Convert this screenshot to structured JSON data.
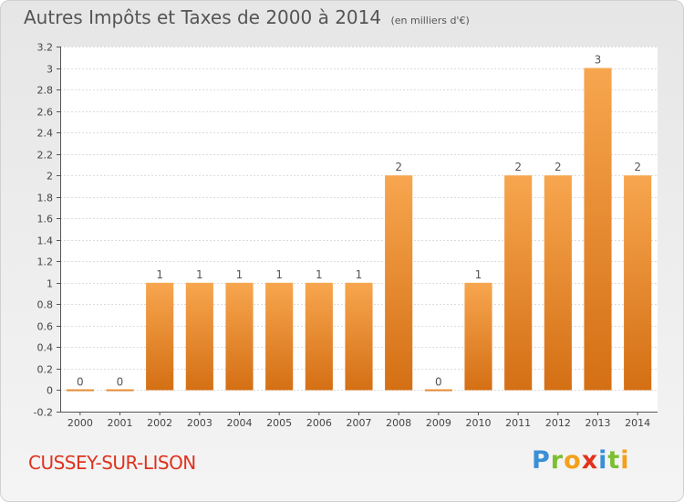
{
  "header": {
    "title": "Autres Impôts et Taxes de 2000 à 2014",
    "unit": "(en milliers d'€)"
  },
  "commune": "CUSSEY-SUR-LISON",
  "logo": {
    "text": "Proxiti"
  },
  "colors": {
    "bar_top": "#f7a64f",
    "bar_bottom": "#d46f14",
    "commune": "#e0321e"
  },
  "chart_data": {
    "type": "bar",
    "title": "Autres Impôts et Taxes de 2000 à 2014",
    "subtitle": "(en milliers d'€)",
    "categories": [
      "2000",
      "2001",
      "2002",
      "2003",
      "2004",
      "2005",
      "2006",
      "2007",
      "2008",
      "2009",
      "2010",
      "2011",
      "2012",
      "2013",
      "2014"
    ],
    "values": [
      0,
      0,
      1,
      1,
      1,
      1,
      1,
      1,
      2,
      0,
      1,
      2,
      2,
      3,
      2
    ],
    "value_labels": [
      "0",
      "0",
      "1",
      "1",
      "1",
      "1",
      "1",
      "1",
      "2",
      "0",
      "1",
      "2",
      "2",
      "3",
      "2"
    ],
    "ylim": [
      -0.2,
      3.2
    ],
    "yticks": [
      "-0.2",
      "0",
      "0.2",
      "0.4",
      "0.6",
      "0.8",
      "1",
      "1.2",
      "1.4",
      "1.6",
      "1.8",
      "2",
      "2.2",
      "2.4",
      "2.6",
      "2.8",
      "3",
      "3.2"
    ],
    "ytick_values": [
      -0.2,
      0,
      0.2,
      0.4,
      0.6,
      0.8,
      1,
      1.2,
      1.4,
      1.6,
      1.8,
      2,
      2.2,
      2.4,
      2.6,
      2.8,
      3,
      3.2
    ],
    "grid": true,
    "xlabel": "",
    "ylabel": ""
  }
}
